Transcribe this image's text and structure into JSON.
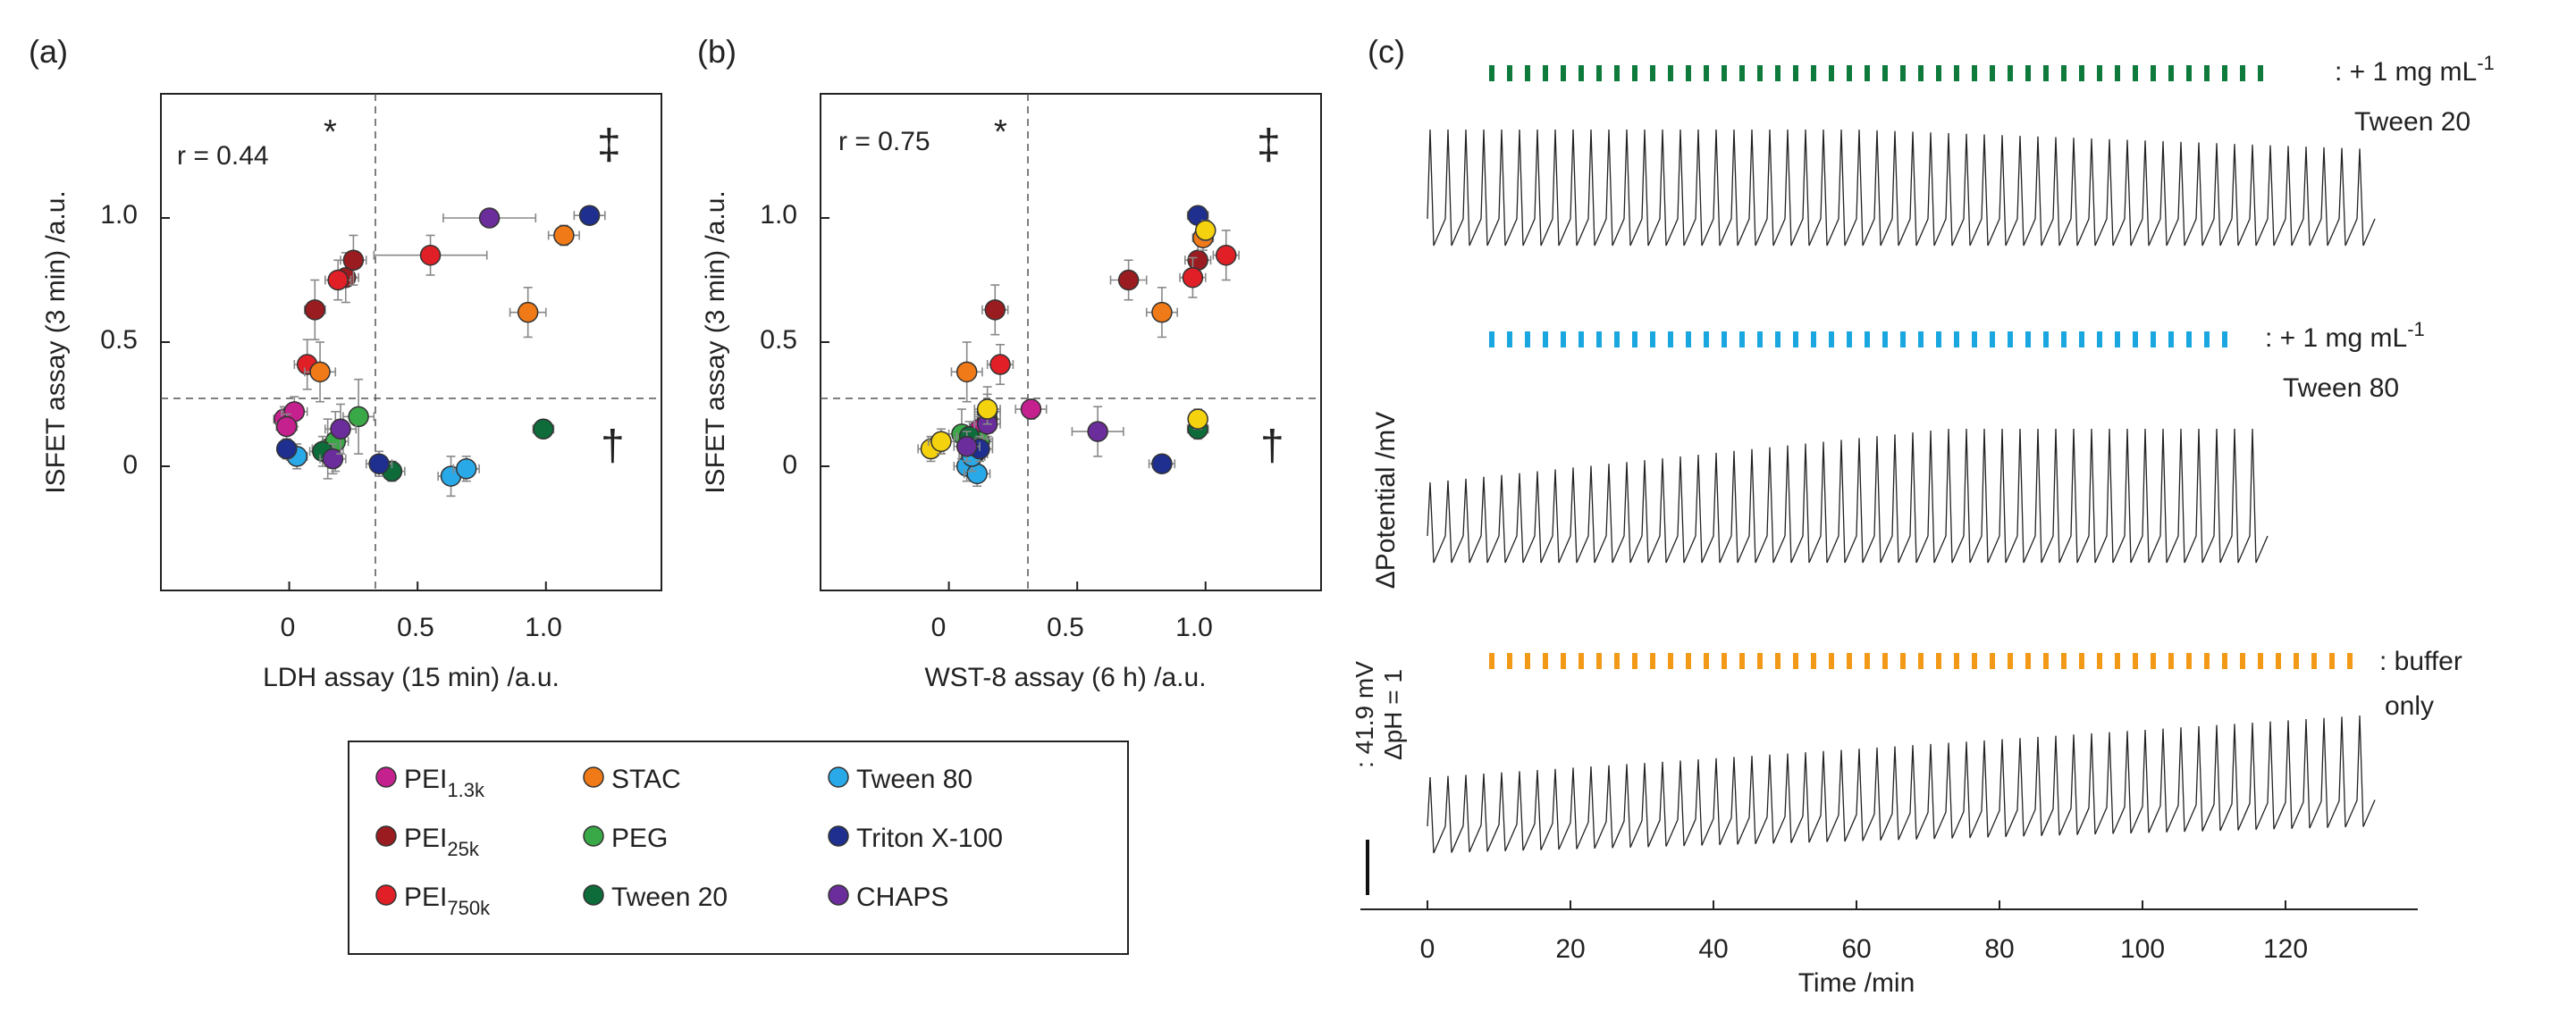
{
  "panel_a": {
    "label": "(a)",
    "corr_text": "r = 0.44",
    "sym_star": "*",
    "sym_ddagger": "‡",
    "sym_dagger": "†"
  },
  "panel_b": {
    "label": "(b)",
    "corr_text": "r = 0.75",
    "sym_star": "*",
    "sym_ddagger": "‡",
    "sym_dagger": "†"
  },
  "panel_c": {
    "label": "(c)",
    "traces": [
      {
        "name": "tween20",
        "label_line1": ": + 1 mg mL",
        "label_sup": "-1",
        "label_line2": "Tween 20",
        "color": "#0e7a3c"
      },
      {
        "name": "tween80",
        "label_line1": ": + 1 mg mL",
        "label_sup": "-1",
        "label_line2": "Tween 80",
        "color": "#1aa7e0"
      },
      {
        "name": "buffer",
        "label_line1": ": buffer",
        "label_sup": "",
        "label_line2": "only",
        "color": "#f29a18"
      }
    ],
    "scale_text_1": ": 41.9 mV",
    "scale_text_2": "ΔpH = 1"
  },
  "legend": {
    "items": [
      {
        "base": "PEI",
        "sub": "1.3k",
        "color": "#c4218f"
      },
      {
        "base": "STAC",
        "sub": "",
        "color": "#f07a17"
      },
      {
        "base": "Tween 80",
        "sub": "",
        "color": "#2aa9e8"
      },
      {
        "base": "PEI",
        "sub": "25k",
        "color": "#9b1c20"
      },
      {
        "base": "PEG",
        "sub": "",
        "color": "#39a846"
      },
      {
        "base": "Triton X-100",
        "sub": "",
        "color": "#1e2f8f"
      },
      {
        "base": "PEI",
        "sub": "750k",
        "color": "#e11f26"
      },
      {
        "base": "Tween 20",
        "sub": "",
        "color": "#0e6b3a"
      },
      {
        "base": "CHAPS",
        "sub": "",
        "color": "#6b2d9b"
      }
    ]
  },
  "chart_data": [
    {
      "type": "scatter",
      "panel": "a",
      "title": "",
      "xlabel": "LDH assay (15 min) /a.u.",
      "ylabel": "ISFET assay (3 min) /a.u.",
      "xlim": [
        -0.5,
        1.45
      ],
      "ylim": [
        -0.5,
        1.5
      ],
      "xticks": [
        0,
        0.5,
        1.0
      ],
      "xtick_labels": [
        "0",
        "0.5",
        "1.0"
      ],
      "yticks": [
        0,
        0.5,
        1.0
      ],
      "ytick_labels": [
        "0",
        "0.5",
        "1.0"
      ],
      "threshold_x": 0.36,
      "threshold_y": 0.26,
      "points": [
        {
          "series": "PEI 1.3k",
          "x": -0.02,
          "y": 0.19,
          "xerr": 0.04,
          "yerr": 0.05
        },
        {
          "series": "PEI 1.3k",
          "x": 0.02,
          "y": 0.22,
          "xerr": 0.05,
          "yerr": 0.06
        },
        {
          "series": "PEI 1.3k",
          "x": -0.01,
          "y": 0.16,
          "xerr": 0.04,
          "yerr": 0.05
        },
        {
          "series": "PEI 25k",
          "x": 0.1,
          "y": 0.63,
          "xerr": 0.04,
          "yerr": 0.12
        },
        {
          "series": "PEI 25k",
          "x": 0.22,
          "y": 0.76,
          "xerr": 0.05,
          "yerr": 0.1
        },
        {
          "series": "PEI 25k",
          "x": 0.25,
          "y": 0.83,
          "xerr": 0.05,
          "yerr": 0.1
        },
        {
          "series": "PEI 750k",
          "x": 0.07,
          "y": 0.41,
          "xerr": 0.05,
          "yerr": 0.1
        },
        {
          "series": "PEI 750k",
          "x": 0.19,
          "y": 0.75,
          "xerr": 0.05,
          "yerr": 0.08
        },
        {
          "series": "PEI 750k",
          "x": 0.55,
          "y": 0.85,
          "xerr": 0.22,
          "yerr": 0.08
        },
        {
          "series": "STAC",
          "x": 0.12,
          "y": 0.38,
          "xerr": 0.06,
          "yerr": 0.12
        },
        {
          "series": "STAC",
          "x": 1.07,
          "y": 0.93,
          "xerr": 0.06,
          "yerr": 0.04
        },
        {
          "series": "STAC",
          "x": 0.93,
          "y": 0.62,
          "xerr": 0.07,
          "yerr": 0.1
        },
        {
          "series": "PEG",
          "x": 0.27,
          "y": 0.2,
          "xerr": 0.06,
          "yerr": 0.15
        },
        {
          "series": "PEG",
          "x": 0.15,
          "y": 0.07,
          "xerr": 0.06,
          "yerr": 0.12
        },
        {
          "series": "PEG",
          "x": 0.18,
          "y": 0.1,
          "xerr": 0.05,
          "yerr": 0.12
        },
        {
          "series": "Tween 20",
          "x": 0.99,
          "y": 0.15,
          "xerr": 0.04,
          "yerr": 0.03
        },
        {
          "series": "Tween 20",
          "x": 0.4,
          "y": -0.02,
          "xerr": 0.05,
          "yerr": 0.04
        },
        {
          "series": "Tween 20",
          "x": 0.13,
          "y": 0.06,
          "xerr": 0.05,
          "yerr": 0.06
        },
        {
          "series": "Tween 80",
          "x": 0.03,
          "y": 0.04,
          "xerr": 0.04,
          "yerr": 0.05
        },
        {
          "series": "Tween 80",
          "x": 0.63,
          "y": -0.04,
          "xerr": 0.05,
          "yerr": 0.08
        },
        {
          "series": "Tween 80",
          "x": 0.69,
          "y": -0.01,
          "xerr": 0.05,
          "yerr": 0.05
        },
        {
          "series": "Triton X-100",
          "x": -0.01,
          "y": 0.07,
          "xerr": 0.03,
          "yerr": 0.04
        },
        {
          "series": "Triton X-100",
          "x": 1.17,
          "y": 1.01,
          "xerr": 0.06,
          "yerr": 0.03
        },
        {
          "series": "Triton X-100",
          "x": 0.35,
          "y": 0.01,
          "xerr": 0.05,
          "yerr": 0.05
        },
        {
          "series": "CHAPS",
          "x": 0.78,
          "y": 1.0,
          "xerr": 0.18,
          "yerr": 0.03
        },
        {
          "series": "CHAPS",
          "x": 0.17,
          "y": 0.03,
          "xerr": 0.05,
          "yerr": 0.06
        },
        {
          "series": "CHAPS",
          "x": 0.2,
          "y": 0.15,
          "xerr": 0.06,
          "yerr": 0.1
        }
      ]
    },
    {
      "type": "scatter",
      "panel": "b",
      "title": "",
      "xlabel": "WST-8 assay (6 h) /a.u.",
      "ylabel": "ISFET assay (3 min) /a.u.",
      "xlim": [
        -0.5,
        1.45
      ],
      "ylim": [
        -0.5,
        1.5
      ],
      "xticks": [
        0,
        0.5,
        1.0
      ],
      "xtick_labels": [
        "0",
        "0.5",
        "1.0"
      ],
      "yticks": [
        0,
        0.5,
        1.0
      ],
      "ytick_labels": [
        "0",
        "0.5",
        "1.0"
      ],
      "threshold_x": 0.36,
      "threshold_y": 0.26,
      "points": [
        {
          "series": "PEI 1.3k",
          "x": 0.32,
          "y": 0.23,
          "xerr": 0.06,
          "yerr": 0.04
        },
        {
          "series": "PEI 1.3k",
          "x": 0.12,
          "y": 0.15,
          "xerr": 0.05,
          "yerr": 0.06
        },
        {
          "series": "PEI 1.3k",
          "x": 0.15,
          "y": 0.19,
          "xerr": 0.05,
          "yerr": 0.05
        },
        {
          "series": "PEI 25k",
          "x": 0.18,
          "y": 0.63,
          "xerr": 0.05,
          "yerr": 0.1
        },
        {
          "series": "PEI 25k",
          "x": 0.7,
          "y": 0.75,
          "xerr": 0.07,
          "yerr": 0.08
        },
        {
          "series": "PEI 25k",
          "x": 0.97,
          "y": 0.83,
          "xerr": 0.05,
          "yerr": 0.08
        },
        {
          "series": "PEI 750k",
          "x": 0.2,
          "y": 0.41,
          "xerr": 0.05,
          "yerr": 0.08
        },
        {
          "series": "PEI 750k",
          "x": 0.95,
          "y": 0.76,
          "xerr": 0.05,
          "yerr": 0.08
        },
        {
          "series": "PEI 750k",
          "x": 1.08,
          "y": 0.85,
          "xerr": 0.05,
          "yerr": 0.1
        },
        {
          "series": "STAC",
          "x": 0.07,
          "y": 0.38,
          "xerr": 0.06,
          "yerr": 0.12
        },
        {
          "series": "STAC",
          "x": 0.83,
          "y": 0.62,
          "xerr": 0.06,
          "yerr": 0.1
        },
        {
          "series": "STAC",
          "x": 0.99,
          "y": 0.92,
          "xerr": 0.04,
          "yerr": 0.05
        },
        {
          "series": "PEG",
          "x": 0.15,
          "y": 0.22,
          "xerr": 0.05,
          "yerr": 0.1
        },
        {
          "series": "PEG",
          "x": 0.05,
          "y": 0.13,
          "xerr": 0.05,
          "yerr": 0.1
        },
        {
          "series": "PEG",
          "x": 0.12,
          "y": 0.1,
          "xerr": 0.05,
          "yerr": 0.1
        },
        {
          "series": "Tween 20",
          "x": 0.97,
          "y": 0.15,
          "xerr": 0.04,
          "yerr": 0.04
        },
        {
          "series": "Tween 20",
          "x": 0.08,
          "y": 0.12,
          "xerr": 0.05,
          "yerr": 0.06
        },
        {
          "series": "Tween 20",
          "x": 0.1,
          "y": 0.05,
          "xerr": 0.05,
          "yerr": 0.06
        },
        {
          "series": "Tween 80",
          "x": 0.07,
          "y": 0.0,
          "xerr": 0.05,
          "yerr": 0.06
        },
        {
          "series": "Tween 80",
          "x": 0.11,
          "y": -0.03,
          "xerr": 0.05,
          "yerr": 0.05
        },
        {
          "series": "Tween 80",
          "x": 0.09,
          "y": 0.04,
          "xerr": 0.05,
          "yerr": 0.06
        },
        {
          "series": "Triton X-100",
          "x": 0.83,
          "y": 0.01,
          "xerr": 0.05,
          "yerr": 0.03
        },
        {
          "series": "Triton X-100",
          "x": 0.12,
          "y": 0.07,
          "xerr": 0.05,
          "yerr": 0.05
        },
        {
          "series": "Triton X-100",
          "x": 0.97,
          "y": 1.01,
          "xerr": 0.04,
          "yerr": 0.03
        },
        {
          "series": "CHAPS",
          "x": 0.58,
          "y": 0.14,
          "xerr": 0.1,
          "yerr": 0.1
        },
        {
          "series": "CHAPS",
          "x": 0.07,
          "y": 0.08,
          "xerr": 0.05,
          "yerr": 0.06
        },
        {
          "series": "CHAPS",
          "x": 0.15,
          "y": 0.17,
          "xerr": 0.05,
          "yerr": 0.06
        },
        {
          "series": "Yellow",
          "x": -0.07,
          "y": 0.07,
          "xerr": 0.05,
          "yerr": 0.05
        },
        {
          "series": "Yellow",
          "x": -0.03,
          "y": 0.1,
          "xerr": 0.05,
          "yerr": 0.05
        },
        {
          "series": "Yellow",
          "x": 0.97,
          "y": 0.19,
          "xerr": 0.03,
          "yerr": 0.04
        },
        {
          "series": "Yellow",
          "x": 1.0,
          "y": 0.95,
          "xerr": 0.03,
          "yerr": 0.04
        },
        {
          "series": "Yellow",
          "x": 0.15,
          "y": 0.23,
          "xerr": 0.05,
          "yerr": 0.06
        }
      ]
    },
    {
      "type": "line",
      "panel": "c",
      "title": "",
      "xlabel": "Time /min",
      "ylabel": "ΔPotential /mV",
      "xlim": [
        -7,
        138
      ],
      "xticks": [
        0,
        20,
        40,
        60,
        80,
        100,
        120
      ],
      "xtick_labels": [
        "0",
        "20",
        "40",
        "60",
        "80",
        "100",
        "120"
      ],
      "series": [
        {
          "name": "+ 1 mg mL-1 Tween 20",
          "x_end": 132,
          "pulse_start": 9,
          "pulse_end": 117,
          "pulse_period": 2.5,
          "spike_amplitude_mV": 50
        },
        {
          "name": "+ 1 mg mL-1 Tween 80",
          "x_end": 116,
          "pulse_start": 9,
          "pulse_end": 113,
          "pulse_period": 2.5,
          "spike_amplitude_mV": 50
        },
        {
          "name": "buffer only",
          "x_end": 132,
          "pulse_start": 9,
          "pulse_end": 130,
          "pulse_period": 2.5,
          "spike_amplitude_mV": 40
        }
      ],
      "scale_bar_mV": 41.9,
      "scale_bar_pH": 1
    }
  ]
}
